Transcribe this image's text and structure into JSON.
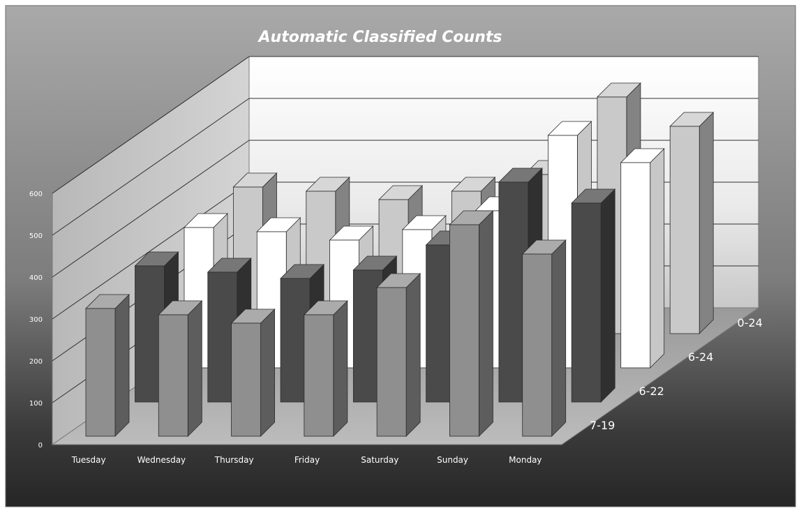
{
  "chart_data": {
    "type": "bar",
    "three_d": true,
    "title": "Automatic Classified Counts",
    "categories": [
      "Tuesday",
      "Wednesday",
      "Thursday",
      "Friday",
      "Saturday",
      "Sunday",
      "Monday"
    ],
    "series": [
      {
        "name": "7-19",
        "color": "#8f8f8f",
        "values": [
          305,
          290,
          270,
          290,
          355,
          505,
          435
        ]
      },
      {
        "name": "6-22",
        "color": "#4a4a4a",
        "values": [
          325,
          310,
          295,
          315,
          375,
          525,
          475
        ]
      },
      {
        "name": "6-24",
        "color": "#ffffff",
        "values": [
          335,
          325,
          305,
          330,
          375,
          555,
          490
        ]
      },
      {
        "name": "0-24",
        "color": "#c9c9c9",
        "values": [
          350,
          340,
          320,
          340,
          380,
          565,
          495
        ]
      }
    ],
    "yticks": [
      0,
      100,
      200,
      300,
      400,
      500,
      600
    ],
    "ylim": [
      0,
      600
    ],
    "legend": "depth-axis-labels"
  }
}
